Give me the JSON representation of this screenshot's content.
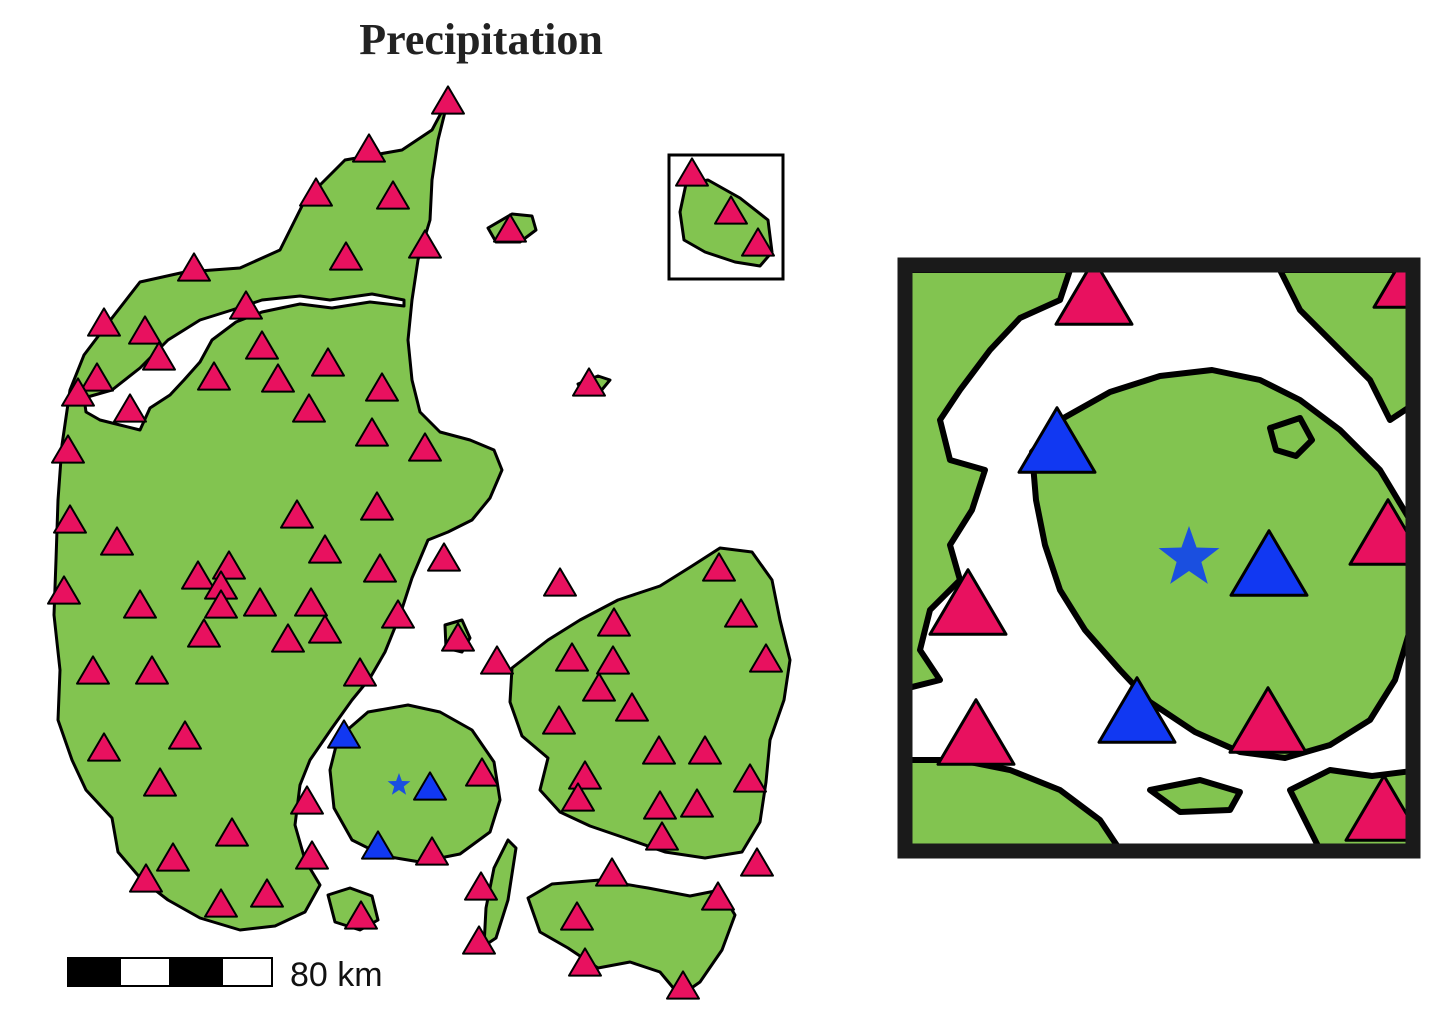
{
  "map": {
    "title": "Precipitation",
    "scale_bar": {
      "label": "80 km"
    }
  },
  "colors": {
    "land": "#82c450",
    "coast": "#000000",
    "water": "#ffffff",
    "station_regular": "#e8115f",
    "station_highlight": "#1138f2",
    "target_star": "#1a4fe0",
    "inset_frame": "#1a1a1a"
  },
  "legend_semantics": {
    "regular_station_icon": "pink-triangle-icon",
    "highlight_station_icon": "blue-triangle-icon",
    "target_location_icon": "blue-star-icon"
  },
  "stations": {
    "regular_count": 105,
    "highlight_count": 3
  },
  "inset": {
    "regular_station_count": 6,
    "highlight_station_count": 3,
    "target_count": 1
  }
}
